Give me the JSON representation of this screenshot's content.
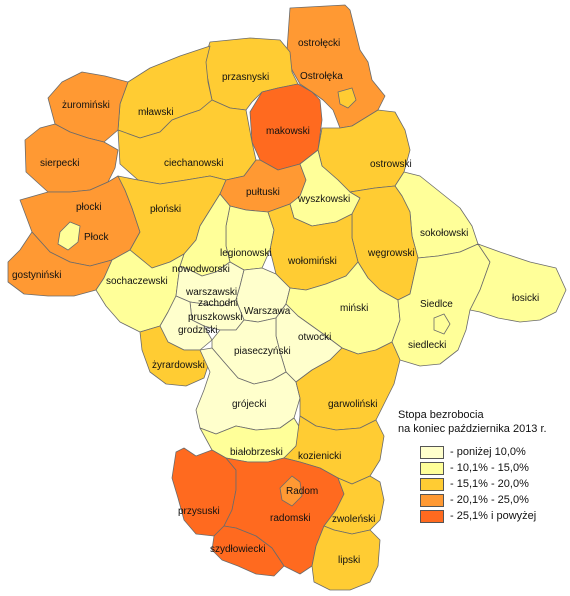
{
  "legend": {
    "title_line1": "Stopa bezrobocia",
    "title_line2": "na koniec października 2013 r.",
    "items": [
      {
        "label": "-   poniżej 10,0%",
        "color": "#ffffcc"
      },
      {
        "label": "- 10,1% -  15,0%",
        "color": "#ffff99"
      },
      {
        "label": "- 15,1% - 20,0%",
        "color": "#ffcc33"
      },
      {
        "label": "- 20,1% - 25,0%",
        "color": "#ff9933"
      },
      {
        "label": "- 25,1% i powyżej",
        "color": "#ff6a1f"
      }
    ]
  },
  "counties": {
    "ostrolecki": "ostrołęcki",
    "ostroleka": "Ostrołęka",
    "przasnyski": "przasnyski",
    "zurominski": "żuromiński",
    "mlawski": "mławski",
    "makowski": "makowski",
    "ostrowski": "ostrowski",
    "sierpecki": "sierpecki",
    "ciechanowski": "ciechanowski",
    "pultuski": "pułtuski",
    "wyszkowski": "wyszkowski",
    "plocki": "płocki",
    "plonski": "płoński",
    "plock": "Płock",
    "sokolowski": "sokołowski",
    "legionowski": "legionowski",
    "wolominski": "wołomiński",
    "wegrowski": "węgrowski",
    "gostyninski": "gostyniński",
    "sochaczewski": "sochaczewski",
    "nowodworski": "nowodworski",
    "warszawski_zachodni_1": "warszawski",
    "warszawski_zachodni_2": "zachodni",
    "warszawa": "Warszawa",
    "pruszkowski": "pruszkowski",
    "grodziski": "grodziski",
    "minski": "miński",
    "siedlce": "Siedlce",
    "losicki": "łosicki",
    "otwocki": "otwocki",
    "siedlecki": "siedlecki",
    "piaseczynski": "piaseczyński",
    "zyrardowski": "żyrardowski",
    "grojecki": "grójecki",
    "garwolinski": "garwoliński",
    "bialobrzeski": "białobrzeski",
    "kozienicki": "kozienicki",
    "radom": "Radom",
    "przysuski": "przysuski",
    "radomski": "radomski",
    "zwolenski": "zwoleński",
    "szydlowiecki": "szydłowiecki",
    "lipski": "lipski"
  },
  "colors": {
    "class1": "#ffffcc",
    "class2": "#ffff99",
    "class3": "#ffcc33",
    "class4": "#ff9933",
    "class5": "#ff6a1f"
  }
}
